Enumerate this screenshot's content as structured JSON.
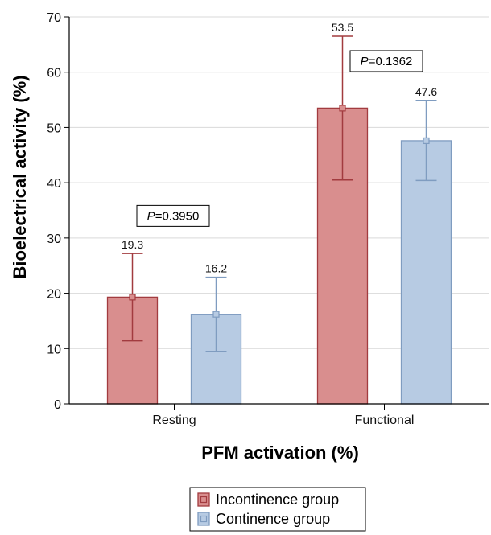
{
  "chart_data": {
    "type": "bar",
    "categories": [
      "Resting",
      "Functional"
    ],
    "xlabel": "PFM activation (%)",
    "ylabel": "Bioelectrical activity (%)",
    "ylim": [
      0,
      70
    ],
    "yticks": [
      0,
      10,
      20,
      30,
      40,
      50,
      60,
      70
    ],
    "grid": true,
    "legend_position": "bottom-center",
    "series": [
      {
        "name": "Incontinence group",
        "color": "#d98e8e",
        "stroke": "#a23b3f",
        "values": [
          19.3,
          53.5
        ],
        "labels": [
          "19.3",
          "53.5"
        ],
        "error_low": [
          11.4,
          40.5
        ],
        "error_high": [
          27.2,
          66.5
        ]
      },
      {
        "name": "Continence group",
        "color": "#b7cbe3",
        "stroke": "#7f9cc0",
        "values": [
          16.2,
          47.6
        ],
        "labels": [
          "16.2",
          "47.6"
        ],
        "error_low": [
          9.5,
          40.4
        ],
        "error_high": [
          22.9,
          54.9
        ]
      }
    ],
    "annotations": [
      {
        "category": "Resting",
        "prefix": "P",
        "text": "=0.3950",
        "y": 34
      },
      {
        "category": "Functional",
        "prefix": "P",
        "text": "=0.1362",
        "y": 62
      }
    ]
  }
}
